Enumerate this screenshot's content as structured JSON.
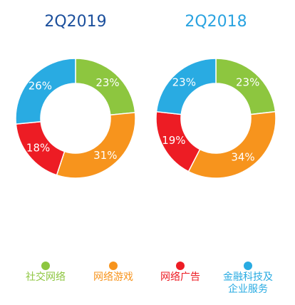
{
  "chart_data": [
    {
      "type": "pie",
      "variant": "donut",
      "title": "2Q2019",
      "title_color": "#1b4f9c",
      "categories": [
        "社交网络",
        "网络游戏",
        "网络广告",
        "金融科技及企业服务"
      ],
      "values": [
        23,
        31,
        18,
        26
      ],
      "labels": [
        "23%",
        "31%",
        "18%",
        "26%"
      ],
      "unit": "%"
    },
    {
      "type": "pie",
      "variant": "donut",
      "title": "2Q2018",
      "title_color": "#2aa3e0",
      "categories": [
        "社交网络",
        "网络游戏",
        "网络广告",
        "金融科技及企业服务"
      ],
      "values": [
        23,
        34,
        19,
        23
      ],
      "labels": [
        "23%",
        "34%",
        "19%",
        "23%"
      ],
      "unit": "%"
    }
  ],
  "legend": {
    "placement": "bottom",
    "items": [
      {
        "label": "社交网络",
        "lines": [
          "社交网络"
        ],
        "color": "#8dc63f",
        "icon": "circle-marker"
      },
      {
        "label": "网络游戏",
        "lines": [
          "网络游戏"
        ],
        "color": "#f7941d",
        "icon": "circle-marker"
      },
      {
        "label": "网络广告",
        "lines": [
          "网络广告"
        ],
        "color": "#ed1c24",
        "icon": "circle-marker"
      },
      {
        "label": "金融科技及企业服务",
        "lines": [
          "金融科技及",
          "企业服务"
        ],
        "color": "#29abe2",
        "icon": "circle-marker"
      }
    ]
  }
}
